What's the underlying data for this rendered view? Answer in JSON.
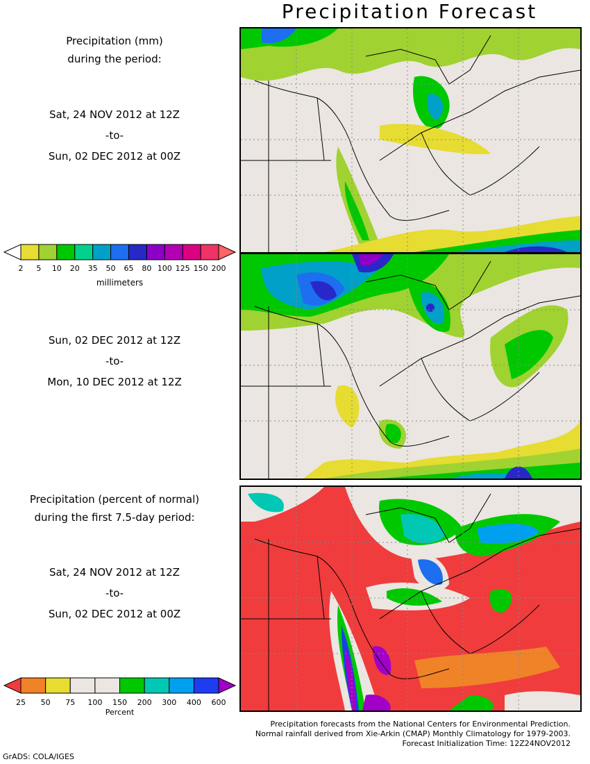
{
  "title": "Precipitation Forecast",
  "panel1": {
    "heading_line1": "Precipitation (mm)",
    "heading_line2": "during the period:",
    "start": "Sat, 24 NOV 2012 at 12Z",
    "to": "-to-",
    "end": "Sun, 02 DEC 2012 at 00Z"
  },
  "panel2": {
    "start": "Sun, 02 DEC 2012 at 12Z",
    "to": "-to-",
    "end": "Mon, 10 DEC 2012 at 12Z"
  },
  "panel3": {
    "heading_line1": "Precipitation (percent of normal)",
    "heading_line2": "during the first 7.5-day period:",
    "start": "Sat, 24 NOV 2012 at 12Z",
    "to": "-to-",
    "end": "Sun, 02 DEC 2012 at 00Z"
  },
  "colorbar_mm": {
    "labels": [
      "2",
      "5",
      "10",
      "20",
      "35",
      "50",
      "65",
      "80",
      "100",
      "125",
      "150",
      "200"
    ],
    "unit": "millimeters",
    "colors": [
      "#ffffff",
      "#e6dc32",
      "#a0d232",
      "#00c800",
      "#00d28c",
      "#00a0c8",
      "#1e6ef0",
      "#2828c8",
      "#8c00c8",
      "#b400b4",
      "#dc0082",
      "#f03264",
      "#ff6464"
    ]
  },
  "colorbar_pct": {
    "labels": [
      "25",
      "50",
      "75",
      "100",
      "150",
      "200",
      "300",
      "400",
      "600"
    ],
    "unit": "Percent",
    "colors": [
      "#f03c3c",
      "#f08228",
      "#e6dc32",
      "#ebe6e1",
      "#ebe6e1",
      "#00c800",
      "#00c8b4",
      "#00a0f0",
      "#1e3cf0",
      "#a000c8"
    ]
  },
  "credits": {
    "line1": "Precipitation forecasts from the National Centers for Environmental Prediction.",
    "line2": "Normal rainfall derived from Xie-Arkin (CMAP) Monthly Climatology for 1979-2003.",
    "line3": "Forecast Initialization Time: 12Z24NOV2012"
  },
  "footer": "GrADS: COLA/IGES"
}
